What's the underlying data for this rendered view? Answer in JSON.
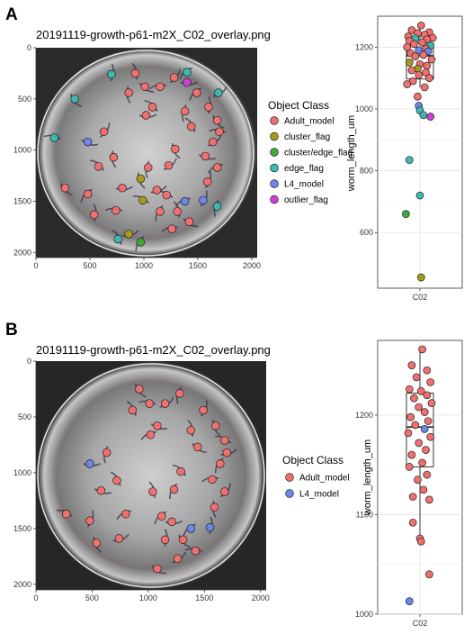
{
  "colors": {
    "Adult_model": "#F07070",
    "cluster_flag": "#A89A1A",
    "cluster/edge_flag": "#3DAA3D",
    "edge_flag": "#3DB8B0",
    "L4_model": "#6D87E8",
    "outlier_flag": "#D23FD8"
  },
  "chart_data": [
    {
      "panel": "A",
      "type": "scatter",
      "title": "20191119-growth-p61-m2X_C02_overlay.png",
      "x_ticks": [
        0,
        500,
        1000,
        1500,
        2000
      ],
      "y_ticks": [
        0,
        500,
        1000,
        1500,
        2000
      ],
      "xlim": [
        0,
        2050
      ],
      "ylim": [
        0,
        2050
      ],
      "legend_title": "Object Class",
      "legend": [
        "Adult_model",
        "cluster_flag",
        "cluster/edge_flag",
        "edge_flag",
        "L4_model",
        "outlier_flag"
      ],
      "points": [
        {
          "x": 1400,
          "y": 340,
          "c": "outlier_flag"
        },
        {
          "x": 1400,
          "y": 240,
          "c": "edge_flag"
        },
        {
          "x": 700,
          "y": 260,
          "c": "edge_flag"
        },
        {
          "x": 360,
          "y": 500,
          "c": "edge_flag"
        },
        {
          "x": 170,
          "y": 880,
          "c": "edge_flag"
        },
        {
          "x": 1690,
          "y": 440,
          "c": "edge_flag"
        },
        {
          "x": 1680,
          "y": 1550,
          "c": "edge_flag"
        },
        {
          "x": 760,
          "y": 1870,
          "c": "edge_flag"
        },
        {
          "x": 480,
          "y": 920,
          "c": "L4_model"
        },
        {
          "x": 1380,
          "y": 1500,
          "c": "L4_model"
        },
        {
          "x": 1550,
          "y": 1490,
          "c": "L4_model"
        },
        {
          "x": 970,
          "y": 1280,
          "c": "cluster_flag"
        },
        {
          "x": 990,
          "y": 1490,
          "c": "cluster_flag"
        },
        {
          "x": 860,
          "y": 1820,
          "c": "cluster_flag"
        },
        {
          "x": 970,
          "y": 1900,
          "c": "cluster/edge_flag"
        },
        {
          "x": 920,
          "y": 250,
          "c": "Adult_model"
        },
        {
          "x": 1010,
          "y": 380,
          "c": "Adult_model"
        },
        {
          "x": 1150,
          "y": 380,
          "c": "Adult_model"
        },
        {
          "x": 1280,
          "y": 290,
          "c": "Adult_model"
        },
        {
          "x": 860,
          "y": 440,
          "c": "Adult_model"
        },
        {
          "x": 1080,
          "y": 580,
          "c": "Adult_model"
        },
        {
          "x": 1020,
          "y": 660,
          "c": "Adult_model"
        },
        {
          "x": 1490,
          "y": 440,
          "c": "Adult_model"
        },
        {
          "x": 1600,
          "y": 580,
          "c": "Adult_model"
        },
        {
          "x": 1680,
          "y": 710,
          "c": "Adult_model"
        },
        {
          "x": 1700,
          "y": 820,
          "c": "Adult_model"
        },
        {
          "x": 1640,
          "y": 920,
          "c": "Adult_model"
        },
        {
          "x": 1380,
          "y": 620,
          "c": "Adult_model"
        },
        {
          "x": 1440,
          "y": 770,
          "c": "Adult_model"
        },
        {
          "x": 1570,
          "y": 1060,
          "c": "Adult_model"
        },
        {
          "x": 1680,
          "y": 1170,
          "c": "Adult_model"
        },
        {
          "x": 1590,
          "y": 1310,
          "c": "Adult_model"
        },
        {
          "x": 1290,
          "y": 990,
          "c": "Adult_model"
        },
        {
          "x": 1210,
          "y": 1440,
          "c": "Adult_model"
        },
        {
          "x": 1120,
          "y": 1390,
          "c": "Adult_model"
        },
        {
          "x": 1150,
          "y": 1600,
          "c": "Adult_model"
        },
        {
          "x": 1310,
          "y": 1600,
          "c": "Adult_model"
        },
        {
          "x": 1420,
          "y": 1700,
          "c": "Adult_model"
        },
        {
          "x": 1260,
          "y": 1770,
          "c": "Adult_model"
        },
        {
          "x": 630,
          "y": 820,
          "c": "Adult_model"
        },
        {
          "x": 720,
          "y": 1070,
          "c": "Adult_model"
        },
        {
          "x": 580,
          "y": 1160,
          "c": "Adult_model"
        },
        {
          "x": 800,
          "y": 1370,
          "c": "Adult_model"
        },
        {
          "x": 480,
          "y": 1430,
          "c": "Adult_model"
        },
        {
          "x": 540,
          "y": 1630,
          "c": "Adult_model"
        },
        {
          "x": 270,
          "y": 1370,
          "c": "Adult_model"
        },
        {
          "x": 740,
          "y": 1590,
          "c": "Adult_model"
        },
        {
          "x": 1230,
          "y": 1150,
          "c": "Adult_model"
        },
        {
          "x": 1040,
          "y": 1170,
          "c": "Adult_model"
        }
      ]
    },
    {
      "panel": "A",
      "type": "box",
      "category": "C02",
      "ylabel": "worm_length_um",
      "y_ticks": [
        600,
        800,
        1000,
        1200
      ],
      "ylim": [
        420,
        1300
      ],
      "box": {
        "q1": 1097,
        "median": 1172,
        "q3": 1213,
        "whisker_low": 1070,
        "whisker_high": 1265
      },
      "points": [
        {
          "v": 1270,
          "c": "Adult_model",
          "dx": 0.05
        },
        {
          "v": 1255,
          "c": "Adult_model",
          "dx": -0.35
        },
        {
          "v": 1248,
          "c": "Adult_model",
          "dx": 0.4
        },
        {
          "v": 1245,
          "c": "Adult_model",
          "dx": -0.1
        },
        {
          "v": 1240,
          "c": "Adult_model",
          "dx": 0.2
        },
        {
          "v": 1235,
          "c": "Adult_model",
          "dx": -0.5
        },
        {
          "v": 1230,
          "c": "Adult_model",
          "dx": 0.55
        },
        {
          "v": 1228,
          "c": "edge_flag",
          "dx": -0.2
        },
        {
          "v": 1225,
          "c": "Adult_model",
          "dx": 0.3
        },
        {
          "v": 1220,
          "c": "Adult_model",
          "dx": -0.45
        },
        {
          "v": 1215,
          "c": "Adult_model",
          "dx": 0.1
        },
        {
          "v": 1210,
          "c": "Adult_model",
          "dx": -0.25
        },
        {
          "v": 1205,
          "c": "edge_flag",
          "dx": 0.45
        },
        {
          "v": 1200,
          "c": "Adult_model",
          "dx": -0.55
        },
        {
          "v": 1195,
          "c": "Adult_model",
          "dx": 0.25
        },
        {
          "v": 1190,
          "c": "L4_model",
          "dx": -0.05
        },
        {
          "v": 1186,
          "c": "L4_model",
          "dx": 0.35
        },
        {
          "v": 1180,
          "c": "Adult_model",
          "dx": -0.4
        },
        {
          "v": 1175,
          "c": "Adult_model",
          "dx": 0.15
        },
        {
          "v": 1170,
          "c": "Adult_model",
          "dx": -0.2
        },
        {
          "v": 1160,
          "c": "Adult_model",
          "dx": 0.5
        },
        {
          "v": 1150,
          "c": "cluster_flag",
          "dx": -0.45
        },
        {
          "v": 1145,
          "c": "Adult_model",
          "dx": 0.0
        },
        {
          "v": 1140,
          "c": "Adult_model",
          "dx": 0.3
        },
        {
          "v": 1130,
          "c": "cluster_flag",
          "dx": -0.1
        },
        {
          "v": 1125,
          "c": "Adult_model",
          "dx": -0.35
        },
        {
          "v": 1118,
          "c": "Adult_model",
          "dx": 0.25
        },
        {
          "v": 1110,
          "c": "Adult_model",
          "dx": -0.05
        },
        {
          "v": 1100,
          "c": "Adult_model",
          "dx": 0.4
        },
        {
          "v": 1090,
          "c": "Adult_model",
          "dx": -0.3
        },
        {
          "v": 1080,
          "c": "Adult_model",
          "dx": -0.55
        },
        {
          "v": 1070,
          "c": "Adult_model",
          "dx": 0.2
        },
        {
          "v": 1040,
          "c": "Adult_model",
          "dx": -0.1
        },
        {
          "v": 1010,
          "c": "L4_model",
          "dx": -0.05
        },
        {
          "v": 995,
          "c": "edge_flag",
          "dx": 0.0
        },
        {
          "v": 980,
          "c": "edge_flag",
          "dx": 0.15
        },
        {
          "v": 975,
          "c": "outlier_flag",
          "dx": 0.45
        },
        {
          "v": 835,
          "c": "edge_flag",
          "dx": -0.45
        },
        {
          "v": 720,
          "c": "edge_flag",
          "dx": 0.0
        },
        {
          "v": 660,
          "c": "cluster/edge_flag",
          "dx": -0.6
        },
        {
          "v": 455,
          "c": "cluster_flag",
          "dx": 0.05
        }
      ]
    },
    {
      "panel": "B",
      "type": "scatter",
      "title": "20191119-growth-p61-m2X_C02_overlay.png",
      "x_ticks": [
        0,
        500,
        1000,
        1500,
        2000
      ],
      "y_ticks": [
        0,
        500,
        1000,
        1500,
        2000
      ],
      "xlim": [
        0,
        2050
      ],
      "ylim": [
        0,
        2050
      ],
      "legend_title": "Object Class",
      "legend": [
        "Adult_model",
        "L4_model"
      ],
      "points": [
        {
          "x": 480,
          "y": 920,
          "c": "L4_model"
        },
        {
          "x": 1380,
          "y": 1500,
          "c": "L4_model"
        },
        {
          "x": 1550,
          "y": 1490,
          "c": "L4_model"
        },
        {
          "x": 920,
          "y": 250,
          "c": "Adult_model"
        },
        {
          "x": 1010,
          "y": 380,
          "c": "Adult_model"
        },
        {
          "x": 1150,
          "y": 380,
          "c": "Adult_model"
        },
        {
          "x": 1280,
          "y": 290,
          "c": "Adult_model"
        },
        {
          "x": 860,
          "y": 440,
          "c": "Adult_model"
        },
        {
          "x": 1080,
          "y": 580,
          "c": "Adult_model"
        },
        {
          "x": 1020,
          "y": 660,
          "c": "Adult_model"
        },
        {
          "x": 1490,
          "y": 440,
          "c": "Adult_model"
        },
        {
          "x": 1600,
          "y": 580,
          "c": "Adult_model"
        },
        {
          "x": 1680,
          "y": 710,
          "c": "Adult_model"
        },
        {
          "x": 1700,
          "y": 820,
          "c": "Adult_model"
        },
        {
          "x": 1640,
          "y": 920,
          "c": "Adult_model"
        },
        {
          "x": 1380,
          "y": 620,
          "c": "Adult_model"
        },
        {
          "x": 1440,
          "y": 770,
          "c": "Adult_model"
        },
        {
          "x": 1570,
          "y": 1060,
          "c": "Adult_model"
        },
        {
          "x": 1680,
          "y": 1170,
          "c": "Adult_model"
        },
        {
          "x": 1590,
          "y": 1310,
          "c": "Adult_model"
        },
        {
          "x": 1290,
          "y": 990,
          "c": "Adult_model"
        },
        {
          "x": 1210,
          "y": 1440,
          "c": "Adult_model"
        },
        {
          "x": 1120,
          "y": 1390,
          "c": "Adult_model"
        },
        {
          "x": 1150,
          "y": 1600,
          "c": "Adult_model"
        },
        {
          "x": 1310,
          "y": 1600,
          "c": "Adult_model"
        },
        {
          "x": 1420,
          "y": 1700,
          "c": "Adult_model"
        },
        {
          "x": 1260,
          "y": 1770,
          "c": "Adult_model"
        },
        {
          "x": 630,
          "y": 820,
          "c": "Adult_model"
        },
        {
          "x": 720,
          "y": 1070,
          "c": "Adult_model"
        },
        {
          "x": 580,
          "y": 1160,
          "c": "Adult_model"
        },
        {
          "x": 800,
          "y": 1370,
          "c": "Adult_model"
        },
        {
          "x": 480,
          "y": 1430,
          "c": "Adult_model"
        },
        {
          "x": 540,
          "y": 1630,
          "c": "Adult_model"
        },
        {
          "x": 270,
          "y": 1370,
          "c": "Adult_model"
        },
        {
          "x": 740,
          "y": 1590,
          "c": "Adult_model"
        },
        {
          "x": 1230,
          "y": 1150,
          "c": "Adult_model"
        },
        {
          "x": 1040,
          "y": 1170,
          "c": "Adult_model"
        },
        {
          "x": 1080,
          "y": 1860,
          "c": "Adult_model"
        }
      ]
    },
    {
      "panel": "B",
      "type": "box",
      "category": "C02",
      "ylabel": "worm_length_um",
      "y_ticks": [
        1000,
        1100,
        1200
      ],
      "ylim": [
        1000,
        1275
      ],
      "box": {
        "q1": 1148,
        "median": 1188,
        "q3": 1222,
        "whisker_low": 1073,
        "whisker_high": 1266
      },
      "points": [
        {
          "v": 1266,
          "c": "Adult_model",
          "dx": 0.1
        },
        {
          "v": 1250,
          "c": "Adult_model",
          "dx": -0.35
        },
        {
          "v": 1245,
          "c": "Adult_model",
          "dx": 0.3
        },
        {
          "v": 1238,
          "c": "Adult_model",
          "dx": -0.15
        },
        {
          "v": 1233,
          "c": "Adult_model",
          "dx": 0.45
        },
        {
          "v": 1226,
          "c": "Adult_model",
          "dx": -0.45
        },
        {
          "v": 1224,
          "c": "Adult_model",
          "dx": 0.05
        },
        {
          "v": 1220,
          "c": "Adult_model",
          "dx": 0.3
        },
        {
          "v": 1217,
          "c": "Adult_model",
          "dx": -0.25
        },
        {
          "v": 1212,
          "c": "Adult_model",
          "dx": 0.5
        },
        {
          "v": 1208,
          "c": "Adult_model",
          "dx": -0.05
        },
        {
          "v": 1203,
          "c": "Adult_model",
          "dx": 0.2
        },
        {
          "v": 1198,
          "c": "Adult_model",
          "dx": -0.4
        },
        {
          "v": 1194,
          "c": "Adult_model",
          "dx": 0.35
        },
        {
          "v": 1190,
          "c": "Adult_model",
          "dx": -0.2
        },
        {
          "v": 1186,
          "c": "L4_model",
          "dx": 0.2
        },
        {
          "v": 1182,
          "c": "Adult_model",
          "dx": -0.5
        },
        {
          "v": 1178,
          "c": "Adult_model",
          "dx": 0.45
        },
        {
          "v": 1172,
          "c": "Adult_model",
          "dx": -0.05
        },
        {
          "v": 1165,
          "c": "Adult_model",
          "dx": 0.25
        },
        {
          "v": 1160,
          "c": "Adult_model",
          "dx": -0.35
        },
        {
          "v": 1152,
          "c": "Adult_model",
          "dx": 0.1
        },
        {
          "v": 1148,
          "c": "Adult_model",
          "dx": -0.45
        },
        {
          "v": 1140,
          "c": "Adult_model",
          "dx": 0.3
        },
        {
          "v": 1135,
          "c": "Adult_model",
          "dx": -0.1
        },
        {
          "v": 1125,
          "c": "Adult_model",
          "dx": 0.15
        },
        {
          "v": 1118,
          "c": "Adult_model",
          "dx": -0.3
        },
        {
          "v": 1115,
          "c": "Adult_model",
          "dx": 0.4
        },
        {
          "v": 1092,
          "c": "Adult_model",
          "dx": -0.3
        },
        {
          "v": 1076,
          "c": "Adult_model",
          "dx": 0.0
        },
        {
          "v": 1073,
          "c": "Adult_model",
          "dx": 0.05
        },
        {
          "v": 1040,
          "c": "Adult_model",
          "dx": 0.4
        },
        {
          "v": 1013,
          "c": "L4_model",
          "dx": -0.45
        }
      ]
    }
  ],
  "labels": {
    "panel_a": "A",
    "panel_b": "B"
  }
}
